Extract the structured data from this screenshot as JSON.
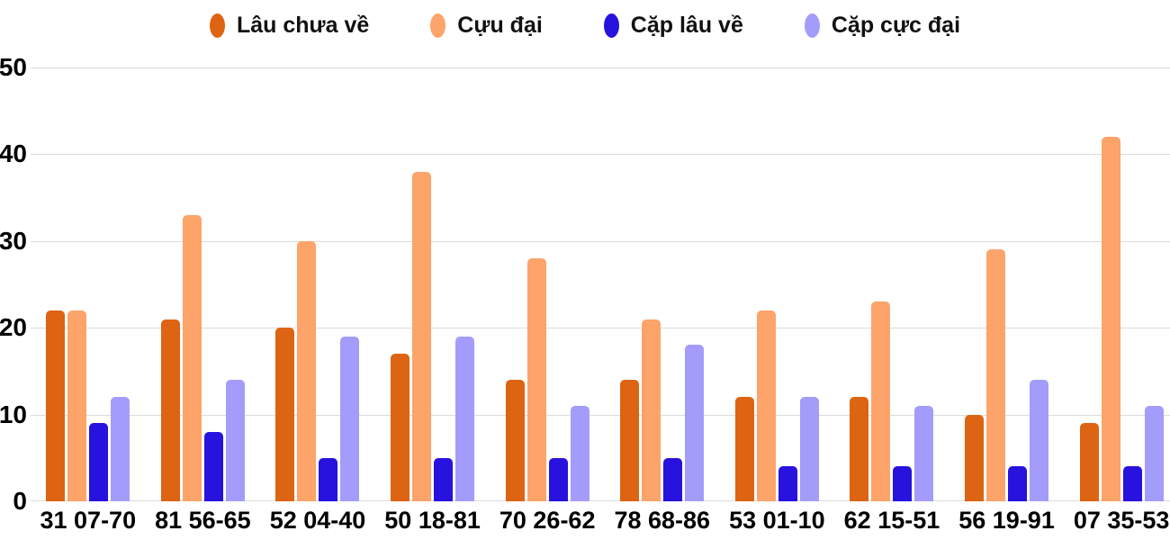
{
  "colors": {
    "grid": "#dcdcdc",
    "text": "#000000",
    "background": "#ffffff"
  },
  "chart_data": {
    "type": "bar",
    "title": "",
    "xlabel": "",
    "ylabel": "",
    "ylim": [
      0,
      50
    ],
    "yticks": [
      0,
      10,
      20,
      30,
      40,
      50
    ],
    "grid": true,
    "legend_position": "top",
    "categories": [
      "31 07-70",
      "81 56-65",
      "52 04-40",
      "50 18-81",
      "70 26-62",
      "78 68-86",
      "53 01-10",
      "62 15-51",
      "56 19-91",
      "07 35-53"
    ],
    "series": [
      {
        "name": "Lâu chưa về",
        "color": "#dd6413",
        "values": [
          22,
          21,
          20,
          17,
          14,
          14,
          12,
          12,
          10,
          9
        ]
      },
      {
        "name": "Cựu đại",
        "color": "#fca46a",
        "values": [
          22,
          33,
          30,
          38,
          28,
          21,
          22,
          23,
          29,
          42
        ]
      },
      {
        "name": "Cặp lâu về",
        "color": "#2712de",
        "values": [
          9,
          8,
          5,
          5,
          5,
          5,
          4,
          4,
          4,
          4
        ]
      },
      {
        "name": "Cặp cực đại",
        "color": "#a49cfa",
        "values": [
          12,
          14,
          19,
          19,
          11,
          18,
          12,
          11,
          14,
          11
        ]
      }
    ]
  }
}
